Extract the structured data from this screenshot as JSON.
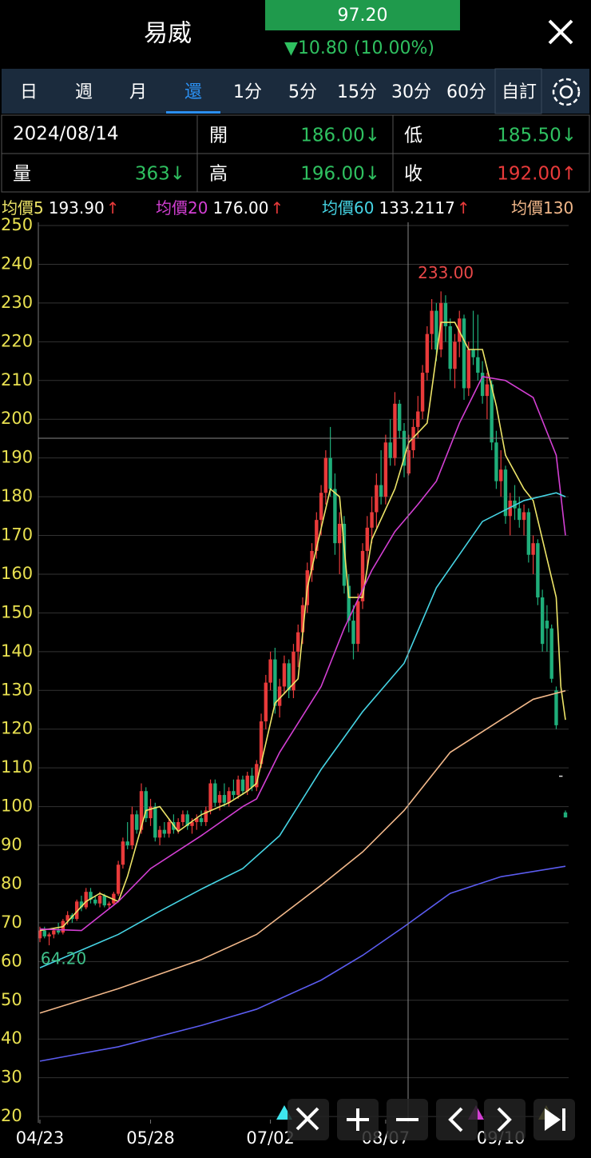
{
  "header": {
    "title": "易威",
    "price": "97.20",
    "change": "▼10.80 (10.00%)"
  },
  "tabs": [
    "日",
    "週",
    "月",
    "還",
    "1分",
    "5分",
    "15分",
    "30分",
    "60分",
    "自訂"
  ],
  "info": {
    "date": "2024/08/14",
    "cells": [
      {
        "label": "開",
        "value": "186.00↓"
      },
      {
        "label": "低",
        "value": "185.50↓"
      },
      {
        "label": "量",
        "value": "363↓"
      },
      {
        "label": "高",
        "value": "196.00↓"
      },
      {
        "label": "收",
        "value": "192.00↑"
      }
    ]
  },
  "chart_data": {
    "type": "candlestick",
    "ylim": [
      19.2,
      250
    ],
    "yticks": [
      20,
      30,
      40,
      50,
      60,
      70,
      80,
      90,
      100,
      110,
      120,
      130,
      140,
      150,
      160,
      170,
      180,
      190,
      200,
      210,
      220,
      230,
      240,
      250
    ],
    "xlim": [
      0,
      114
    ],
    "xticks": [
      {
        "value": 0,
        "label": "04/23"
      },
      {
        "value": 24,
        "label": "05/28"
      },
      {
        "value": 50,
        "label": "07/02"
      },
      {
        "value": 75,
        "label": "08/07"
      },
      {
        "value": 100,
        "label": "09/10"
      }
    ],
    "grid": true,
    "up_color": "#e83a3a",
    "down_color": "#1fae7a",
    "candles": [
      [
        66,
        69,
        65,
        68
      ],
      [
        68,
        69,
        66,
        66.5
      ],
      [
        66.5,
        67.5,
        64.2,
        67
      ],
      [
        67,
        68.5,
        66,
        68
      ],
      [
        68,
        70,
        67,
        67.5
      ],
      [
        67.5,
        71,
        67,
        70.5
      ],
      [
        70.5,
        73,
        69.5,
        72
      ],
      [
        72,
        72.5,
        70,
        71
      ],
      [
        71,
        76,
        70.5,
        75.5
      ],
      [
        75.5,
        77,
        73,
        74
      ],
      [
        74,
        79,
        73.5,
        78
      ],
      [
        78,
        79,
        75,
        76
      ],
      [
        76,
        77,
        74.5,
        75
      ],
      [
        75,
        78,
        74,
        77
      ],
      [
        77,
        77.5,
        74,
        74.5
      ],
      [
        74.5,
        75.5,
        73.5,
        75
      ],
      [
        75,
        78,
        74.5,
        77.5
      ],
      [
        77.5,
        86,
        77,
        85
      ],
      [
        85,
        92,
        84,
        91
      ],
      [
        91,
        96,
        89,
        90
      ],
      [
        90,
        100,
        89,
        98
      ],
      [
        98,
        99,
        93,
        94
      ],
      [
        94,
        106,
        93,
        104
      ],
      [
        104,
        105,
        96,
        97
      ],
      [
        97,
        102,
        95,
        100
      ],
      [
        100,
        101,
        91,
        92
      ],
      [
        92,
        95,
        90,
        94
      ],
      [
        94,
        96,
        92,
        93
      ],
      [
        93,
        97,
        92,
        96
      ],
      [
        96,
        98,
        93,
        94
      ],
      [
        94,
        97,
        93,
        96
      ],
      [
        96,
        99,
        95,
        98
      ],
      [
        98,
        99,
        94,
        95
      ],
      [
        95,
        97,
        93,
        96
      ],
      [
        96,
        98,
        94,
        97
      ],
      [
        97,
        99,
        95,
        96
      ],
      [
        96,
        100,
        95,
        99
      ],
      [
        99,
        107,
        98,
        106
      ],
      [
        106,
        107,
        100,
        101
      ],
      [
        101,
        104,
        99,
        103
      ],
      [
        103,
        106,
        100,
        101
      ],
      [
        101,
        105,
        100,
        104
      ],
      [
        104,
        107,
        102,
        103
      ],
      [
        103,
        108,
        102,
        107
      ],
      [
        107,
        108,
        103,
        104
      ],
      [
        104,
        109,
        103,
        108
      ],
      [
        108,
        110,
        104,
        105
      ],
      [
        105,
        112,
        104,
        111
      ],
      [
        111,
        124,
        110,
        122
      ],
      [
        122,
        134,
        120,
        132
      ],
      [
        132,
        140,
        130,
        138
      ],
      [
        138,
        141,
        124,
        126
      ],
      [
        126,
        133,
        123,
        131
      ],
      [
        131,
        139,
        129,
        137
      ],
      [
        137,
        138,
        128,
        130
      ],
      [
        130,
        142,
        128,
        140
      ],
      [
        140,
        147,
        136,
        145
      ],
      [
        145,
        154,
        142,
        152
      ],
      [
        152,
        163,
        150,
        161
      ],
      [
        161,
        168,
        158,
        166
      ],
      [
        166,
        176,
        164,
        174
      ],
      [
        174,
        183,
        170,
        181
      ],
      [
        181,
        192,
        178,
        190
      ],
      [
        190,
        198,
        180,
        182
      ],
      [
        182,
        186,
        165,
        168
      ],
      [
        168,
        176,
        160,
        173
      ],
      [
        173,
        175,
        155,
        157
      ],
      [
        157,
        160,
        145,
        148
      ],
      [
        148,
        152,
        138,
        142
      ],
      [
        142,
        155,
        140,
        153
      ],
      [
        153,
        168,
        151,
        166
      ],
      [
        166,
        175,
        162,
        172
      ],
      [
        172,
        180,
        168,
        176
      ],
      [
        176,
        186,
        172,
        183
      ],
      [
        183,
        192,
        178,
        180
      ],
      [
        180,
        196,
        178,
        194
      ],
      [
        194,
        200,
        188,
        190
      ],
      [
        190,
        207,
        188,
        204
      ],
      [
        204,
        205,
        195,
        197
      ],
      [
        197,
        199,
        185,
        188
      ],
      [
        186,
        196,
        185.5,
        192
      ],
      [
        192,
        200,
        190,
        198
      ],
      [
        198,
        206,
        195,
        202
      ],
      [
        202,
        214,
        200,
        212
      ],
      [
        212,
        224,
        210,
        222
      ],
      [
        222,
        231,
        218,
        228
      ],
      [
        228,
        230,
        215,
        218
      ],
      [
        218,
        233,
        216,
        230
      ],
      [
        230,
        232,
        220,
        224
      ],
      [
        224,
        226,
        210,
        213
      ],
      [
        213,
        222,
        208,
        220
      ],
      [
        220,
        228,
        216,
        226
      ],
      [
        226,
        227,
        205,
        208
      ],
      [
        208,
        220,
        206,
        218
      ],
      [
        218,
        228,
        214,
        216
      ],
      [
        216,
        227,
        210,
        212
      ],
      [
        212,
        215,
        204,
        206
      ],
      [
        206,
        212,
        200,
        209
      ],
      [
        209,
        210,
        192,
        194
      ],
      [
        194,
        197,
        182,
        184
      ],
      [
        184,
        192,
        180,
        187
      ],
      [
        187,
        188,
        173,
        175
      ],
      [
        175,
        181,
        170,
        179
      ],
      [
        179,
        183,
        174,
        177
      ],
      [
        177,
        180,
        172,
        174
      ],
      [
        174,
        178,
        170,
        176
      ],
      [
        176,
        177,
        163,
        165
      ],
      [
        165,
        170,
        160,
        168
      ],
      [
        168,
        169,
        152,
        154
      ],
      [
        154,
        156,
        140,
        142
      ],
      [
        148,
        152,
        140,
        146
      ],
      [
        146,
        147,
        132,
        133
      ],
      [
        130,
        131,
        120,
        121
      ],
      [
        108,
        108,
        108,
        108
      ],
      [
        98.5,
        99,
        97.2,
        97.2
      ]
    ],
    "series": [
      {
        "name": "均價5",
        "legend_value": "193.90",
        "legend_arrow": "↑",
        "color": "#ede468",
        "x": [
          0,
          5,
          10,
          13,
          17,
          19,
          23,
          26,
          30,
          35,
          41,
          45,
          47,
          51,
          56,
          58,
          63,
          65,
          67,
          70,
          72,
          77,
          80,
          84,
          87,
          90,
          93,
          96,
          99,
          101,
          105,
          107,
          109,
          112,
          113,
          114
        ],
        "values": [
          68,
          69,
          75.5,
          77.6,
          75.5,
          82,
          99,
          100,
          93.6,
          97.9,
          101,
          104,
          106,
          126.7,
          133,
          156.5,
          182,
          180,
          154,
          154,
          169,
          182,
          194,
          199,
          225,
          225,
          218,
          218,
          203.5,
          190.7,
          182,
          179,
          169,
          154,
          131,
          122.4
        ]
      },
      {
        "name": "均價20",
        "legend_value": "176.00",
        "legend_arrow": "↑",
        "color": "#d33fd3",
        "x": [
          0,
          9,
          17,
          24,
          35,
          44,
          47,
          52,
          61,
          66,
          72,
          77,
          82,
          86,
          91,
          96,
          101,
          107,
          112,
          114
        ],
        "values": [
          68.4,
          68,
          75.5,
          84,
          92.5,
          100,
          102,
          114,
          131,
          146,
          161,
          171,
          178,
          184,
          199,
          211,
          210,
          205.6,
          190.7,
          170
        ]
      },
      {
        "name": "均價60",
        "legend_value": "133.2117",
        "legend_arrow": "↑",
        "color": "#46d4e4",
        "x": [
          0,
          17,
          26,
          35,
          44,
          52,
          61,
          70,
          79,
          86,
          96,
          105,
          112,
          114
        ],
        "values": [
          58.4,
          67,
          73,
          78.7,
          84,
          92.5,
          109.6,
          124.5,
          137,
          156.5,
          173.6,
          179,
          181,
          180
        ]
      },
      {
        "name": "均價130",
        "color": "#f2b88a",
        "x": [
          0,
          17,
          35,
          47,
          61,
          70,
          79,
          89,
          100,
          107,
          114
        ],
        "values": [
          46.7,
          53,
          60.5,
          67,
          79.7,
          88.3,
          99,
          114,
          122.4,
          127.7,
          129.9
        ]
      },
      {
        "color": "#5b5cf0",
        "x": [
          0,
          17,
          35,
          47,
          61,
          70,
          79,
          89,
          100,
          114
        ],
        "values": [
          34.3,
          38,
          43.5,
          47.7,
          55.2,
          61.6,
          69,
          77.6,
          81.9,
          84.6
        ]
      }
    ],
    "annotations": [
      {
        "text": "233.00",
        "value": 233,
        "at": 87,
        "color": "#e84848"
      },
      {
        "text": "64.20",
        "value": 64.2,
        "at": 2,
        "color": "#3fc08a"
      }
    ]
  }
}
